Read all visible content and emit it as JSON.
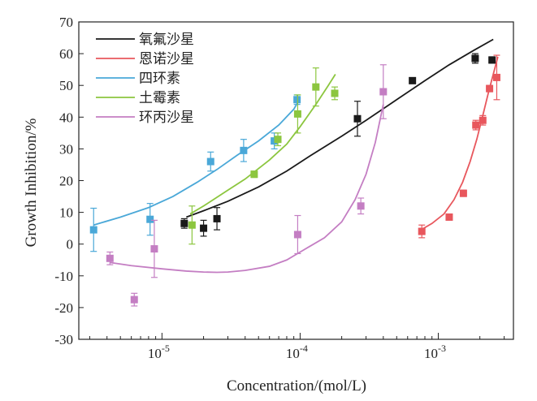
{
  "chart_data": {
    "type": "scatter",
    "xlabel": "Concentration/(mol/L)",
    "ylabel": "Growth Inhibition/%",
    "x_scale": "log",
    "xlim": [
      2.5e-06,
      0.0035
    ],
    "ylim": [
      -30,
      70
    ],
    "y_ticks": [
      "-30",
      "-20",
      "-10",
      "0",
      "10",
      "20",
      "30",
      "40",
      "50",
      "60",
      "70"
    ],
    "x_ticks": [
      {
        "value": 1e-05,
        "base": "10",
        "exp": "-5"
      },
      {
        "value": 0.0001,
        "base": "10",
        "exp": "-4"
      },
      {
        "value": 0.001,
        "base": "10",
        "exp": "-3"
      }
    ],
    "legend_position": "top-left",
    "grid": false,
    "series": [
      {
        "name": "氧氟沙星",
        "color": "#1a1a1a",
        "points": [
          {
            "x": 1.45e-05,
            "y": 6.5,
            "err": 1.5
          },
          {
            "x": 2e-05,
            "y": 5.0,
            "err": 2.5
          },
          {
            "x": 2.5e-05,
            "y": 8.0,
            "err": 3.5
          },
          {
            "x": 0.00026,
            "y": 39.5,
            "err": 5.5
          },
          {
            "x": 0.00065,
            "y": 51.5,
            "err": 0.8
          },
          {
            "x": 0.00185,
            "y": 58.5,
            "err": 1.5
          },
          {
            "x": 0.00245,
            "y": 58.0,
            "err": 1.0
          }
        ],
        "curve": [
          [
            1.5e-05,
            8.5
          ],
          [
            2e-05,
            10.5
          ],
          [
            3e-05,
            13.5
          ],
          [
            5e-05,
            18.0
          ],
          [
            8e-05,
            23.0
          ],
          [
            0.00012,
            28.0
          ],
          [
            0.0002,
            34.0
          ],
          [
            0.0003,
            39.0
          ],
          [
            0.0005,
            45.5
          ],
          [
            0.0008,
            51.5
          ],
          [
            0.0012,
            56.5
          ],
          [
            0.0018,
            61.0
          ],
          [
            0.0025,
            64.5
          ]
        ]
      },
      {
        "name": "恩诺沙星",
        "color": "#e8575d",
        "points": [
          {
            "x": 0.00076,
            "y": 4.0,
            "err": 2.0
          },
          {
            "x": 0.0012,
            "y": 8.5,
            "err": 0.8
          },
          {
            "x": 0.00152,
            "y": 16.0,
            "err": 1.0
          },
          {
            "x": 0.00187,
            "y": 37.5,
            "err": 1.5
          },
          {
            "x": 0.0021,
            "y": 39.0,
            "err": 1.5
          },
          {
            "x": 0.00235,
            "y": 49.0,
            "err": 1.0
          },
          {
            "x": 0.00265,
            "y": 52.5,
            "err": 7.0
          }
        ],
        "curve": [
          [
            0.00075,
            4.5
          ],
          [
            0.0009,
            6.5
          ],
          [
            0.0011,
            9.5
          ],
          [
            0.0013,
            14.0
          ],
          [
            0.0015,
            19.5
          ],
          [
            0.0017,
            26.0
          ],
          [
            0.0019,
            33.0
          ],
          [
            0.0021,
            40.5
          ],
          [
            0.0023,
            47.5
          ],
          [
            0.0025,
            53.5
          ],
          [
            0.0027,
            59.0
          ]
        ]
      },
      {
        "name": "四环素",
        "color": "#4aa8d8",
        "points": [
          {
            "x": 3.2e-06,
            "y": 4.5,
            "err": 6.8
          },
          {
            "x": 8.2e-06,
            "y": 7.8,
            "err": 5.0
          },
          {
            "x": 2.25e-05,
            "y": 26.0,
            "err": 3.0
          },
          {
            "x": 3.9e-05,
            "y": 29.5,
            "err": 3.5
          },
          {
            "x": 6.5e-05,
            "y": 32.5,
            "err": 2.5
          },
          {
            "x": 9.5e-05,
            "y": 45.5,
            "err": 1.5
          }
        ],
        "curve": [
          [
            3.2e-06,
            6.0
          ],
          [
            5e-06,
            8.5
          ],
          [
            8e-06,
            11.5
          ],
          [
            1.2e-05,
            15.0
          ],
          [
            1.8e-05,
            19.5
          ],
          [
            2.5e-05,
            23.5
          ],
          [
            3.5e-05,
            28.0
          ],
          [
            5e-05,
            32.5
          ],
          [
            7e-05,
            37.5
          ],
          [
            9e-05,
            42.5
          ],
          [
            0.0001,
            46.0
          ]
        ]
      },
      {
        "name": "土霉素",
        "color": "#8cc63f",
        "points": [
          {
            "x": 1.65e-05,
            "y": 6.0,
            "err": 6.0
          },
          {
            "x": 4.65e-05,
            "y": 22.0,
            "err": 1.0
          },
          {
            "x": 6.9e-05,
            "y": 33.0,
            "err": 2.0
          },
          {
            "x": 9.6e-05,
            "y": 41.0,
            "err": 6.0
          },
          {
            "x": 0.00013,
            "y": 49.5,
            "err": 6.0
          },
          {
            "x": 0.000178,
            "y": 47.5,
            "err": 2.0
          }
        ],
        "curve": [
          [
            1.6e-05,
            9.5
          ],
          [
            2e-05,
            12.0
          ],
          [
            3e-05,
            17.0
          ],
          [
            4e-05,
            20.5
          ],
          [
            6e-05,
            26.5
          ],
          [
            8e-05,
            31.5
          ],
          [
            0.0001,
            37.0
          ],
          [
            0.00013,
            44.0
          ],
          [
            0.00016,
            50.0
          ],
          [
            0.00018,
            53.5
          ]
        ]
      },
      {
        "name": "环丙沙星",
        "color": "#c47ec3",
        "points": [
          {
            "x": 4.2e-06,
            "y": -4.5,
            "err": 2.0
          },
          {
            "x": 6.3e-06,
            "y": -17.5,
            "err": 2.0
          },
          {
            "x": 8.8e-06,
            "y": -1.5,
            "err": 9.0
          },
          {
            "x": 9.6e-05,
            "y": 3.0,
            "err": 6.0
          },
          {
            "x": 0.000275,
            "y": 12.0,
            "err": 2.5
          },
          {
            "x": 0.0004,
            "y": 48.0,
            "err": 8.5
          }
        ],
        "curve": [
          [
            4.2e-06,
            -5.8
          ],
          [
            6e-06,
            -6.8
          ],
          [
            1e-05,
            -7.8
          ],
          [
            1.5e-05,
            -8.5
          ],
          [
            2e-05,
            -8.8
          ],
          [
            2.5e-05,
            -8.9
          ],
          [
            3e-05,
            -8.8
          ],
          [
            4e-05,
            -8.3
          ],
          [
            6e-05,
            -7.0
          ],
          [
            8e-05,
            -5.0
          ],
          [
            0.0001,
            -2.5
          ],
          [
            0.00015,
            2.0
          ],
          [
            0.0002,
            7.0
          ],
          [
            0.00025,
            14.0
          ],
          [
            0.0003,
            22.0
          ],
          [
            0.00035,
            32.0
          ],
          [
            0.0004,
            44.0
          ]
        ]
      }
    ]
  }
}
